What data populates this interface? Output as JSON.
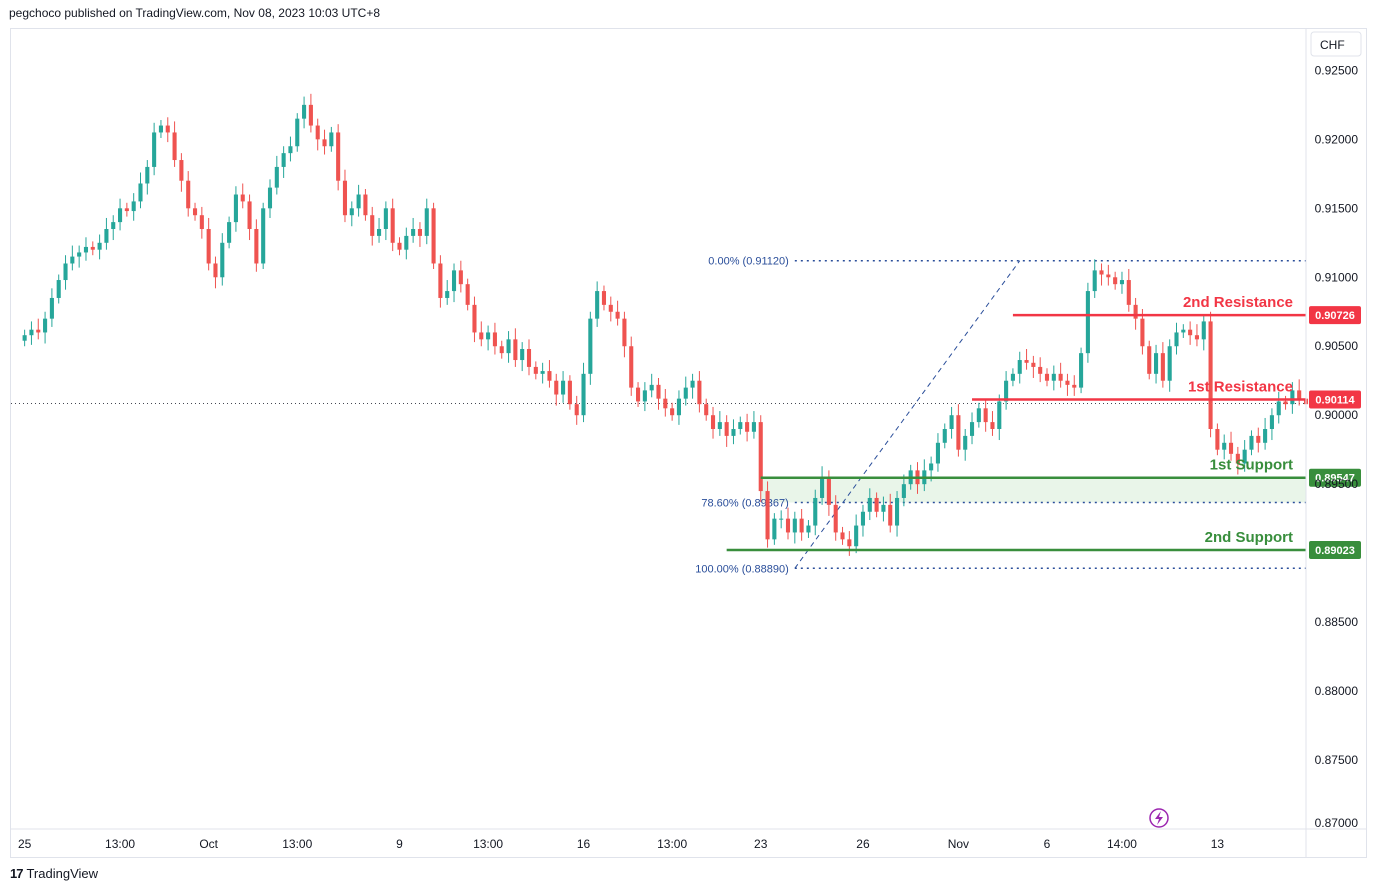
{
  "header": {
    "text": "pegchoco published on TradingView.com, Nov 08, 2023 10:03 UTC+8"
  },
  "footer": {
    "brand": "TradingView",
    "logo": "17"
  },
  "colors": {
    "up": "#26a69a",
    "down": "#ef5350",
    "resistance": "#f23645",
    "support": "#388e3c",
    "fib": "#2a4e9a",
    "zone": "#e3f2e3",
    "grid": "#e0e3eb"
  },
  "chart_data": {
    "type": "candlestick",
    "currency": "CHF",
    "ylim": [
      0.87,
      0.928
    ],
    "y_ticks": [
      "0.92500",
      "0.92000",
      "0.91500",
      "0.91000",
      "0.90500",
      "0.90000",
      "0.89500",
      "0.88500",
      "0.88000",
      "0.87500",
      "0.87000"
    ],
    "x_ticks": [
      "25",
      "13:00",
      "Oct",
      "13:00",
      "9",
      "13:00",
      "16",
      "13:00",
      "23",
      "26",
      "Nov",
      "6",
      "14:00",
      "13"
    ],
    "x_range": [
      -2,
      188
    ],
    "x_tick_positions": [
      0,
      14,
      27,
      40,
      55,
      68,
      82,
      95,
      108,
      123,
      137,
      150,
      161,
      175
    ],
    "current_price": 0.90085,
    "levels": [
      {
        "label": "2nd Resistance",
        "value": 0.90726,
        "kind": "resistance",
        "x_start": 145
      },
      {
        "label": "1st Resistance",
        "value": 0.90114,
        "kind": "resistance",
        "x_start": 139
      },
      {
        "label": "1st Support",
        "value": 0.89547,
        "kind": "support",
        "x_start": 108
      },
      {
        "label": "2nd Support",
        "value": 0.89023,
        "kind": "support",
        "x_start": 103
      }
    ],
    "fibonacci": [
      {
        "label": "0.00% (0.91120)",
        "value": 0.9112
      },
      {
        "label": "78.60% (0.89367)",
        "value": 0.89367
      },
      {
        "label": "100.00% (0.88890)",
        "value": 0.8889
      }
    ],
    "fib_x_start": 113,
    "fib_trend": {
      "from": [
        113,
        0.8889
      ],
      "to": [
        146,
        0.9112
      ]
    },
    "support_zone": {
      "from": 0.89367,
      "to": 0.89547,
      "x_start": 108
    },
    "close": [
      0.9058,
      0.9062,
      0.906,
      0.907,
      0.9085,
      0.9098,
      0.911,
      0.9115,
      0.9118,
      0.9122,
      0.912,
      0.9125,
      0.9135,
      0.914,
      0.915,
      0.9148,
      0.9155,
      0.9168,
      0.918,
      0.9205,
      0.921,
      0.9205,
      0.9185,
      0.917,
      0.915,
      0.9145,
      0.9135,
      0.911,
      0.91,
      0.9125,
      0.914,
      0.916,
      0.9155,
      0.9135,
      0.911,
      0.915,
      0.9165,
      0.918,
      0.919,
      0.9195,
      0.9215,
      0.9225,
      0.921,
      0.92,
      0.9195,
      0.9205,
      0.917,
      0.9145,
      0.915,
      0.916,
      0.9145,
      0.913,
      0.9135,
      0.915,
      0.9125,
      0.912,
      0.913,
      0.9135,
      0.913,
      0.915,
      0.911,
      0.9085,
      0.909,
      0.9105,
      0.9095,
      0.908,
      0.906,
      0.9055,
      0.906,
      0.905,
      0.9045,
      0.9055,
      0.904,
      0.9048,
      0.9035,
      0.903,
      0.9032,
      0.9025,
      0.9015,
      0.9025,
      0.9008,
      0.9,
      0.903,
      0.907,
      0.909,
      0.908,
      0.9075,
      0.907,
      0.905,
      0.902,
      0.901,
      0.9018,
      0.9022,
      0.9012,
      0.9005,
      0.9,
      0.9012,
      0.902,
      0.9025,
      0.9008,
      0.9,
      0.899,
      0.8995,
      0.8985,
      0.899,
      0.8995,
      0.8988,
      0.8995,
      0.8945,
      0.891,
      0.8925,
      0.8925,
      0.8915,
      0.8925,
      0.8915,
      0.892,
      0.894,
      0.8955,
      0.8935,
      0.8915,
      0.891,
      0.8905,
      0.892,
      0.893,
      0.894,
      0.893,
      0.8935,
      0.892,
      0.894,
      0.895,
      0.896,
      0.895,
      0.896,
      0.8965,
      0.898,
      0.899,
      0.9,
      0.8975,
      0.8985,
      0.8995,
      0.9005,
      0.8995,
      0.899,
      0.901,
      0.9025,
      0.903,
      0.904,
      0.9038,
      0.9035,
      0.903,
      0.9025,
      0.903,
      0.9025,
      0.9022,
      0.902,
      0.9045,
      0.909,
      0.9105,
      0.9102,
      0.91,
      0.9095,
      0.9098,
      0.908,
      0.907,
      0.905,
      0.903,
      0.9045,
      0.9025,
      0.905,
      0.906,
      0.9062,
      0.9058,
      0.9055,
      0.9068,
      0.899,
      0.8975,
      0.898,
      0.8972,
      0.8965,
      0.8975,
      0.8985,
      0.898,
      0.899,
      0.9,
      0.901,
      0.9008,
      0.9018,
      0.9012,
      0.9008
    ]
  }
}
